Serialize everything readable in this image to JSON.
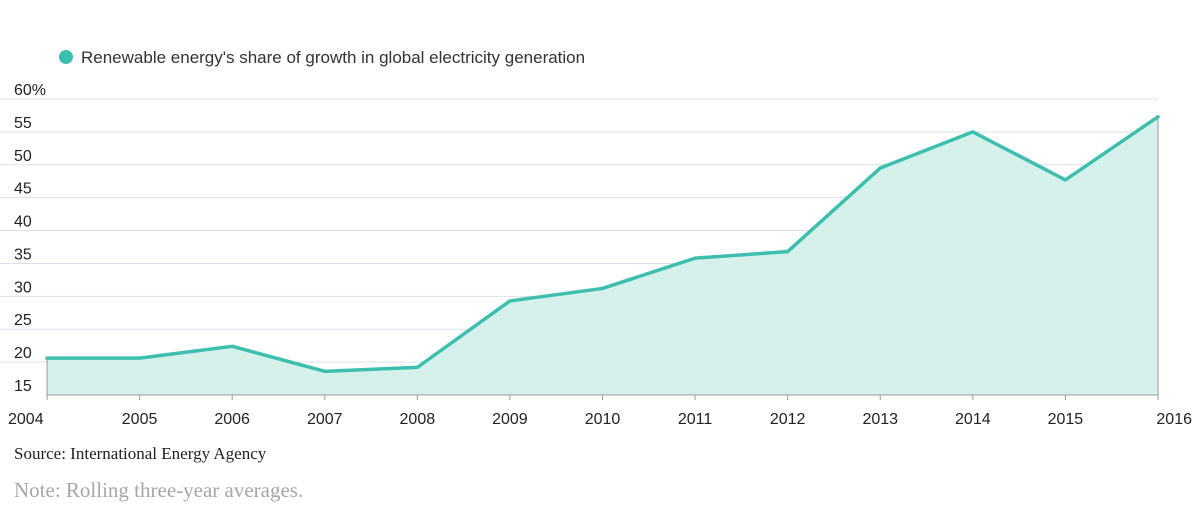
{
  "chart_data": {
    "type": "area",
    "legend": [
      "Renewable energy's share of growth in global electricity generation"
    ],
    "x": [
      "2004",
      "2005",
      "2006",
      "2007",
      "2008",
      "2009",
      "2010",
      "2011",
      "2012",
      "2013",
      "2014",
      "2015",
      "2016"
    ],
    "series": [
      {
        "name": "Renewable energy's share of growth in global electricity generation",
        "values": [
          20.6,
          20.6,
          22.4,
          18.6,
          19.2,
          29.3,
          31.2,
          35.8,
          36.8,
          49.5,
          55.0,
          47.7,
          57.3
        ]
      }
    ],
    "ylim": [
      15,
      60
    ],
    "yticks": [
      15,
      20,
      25,
      30,
      35,
      40,
      45,
      50,
      55,
      60
    ],
    "ytick_labels": [
      "15",
      "20",
      "25",
      "30",
      "35",
      "40",
      "45",
      "50",
      "55",
      "60%"
    ],
    "colors": {
      "line": "#3cbfae",
      "fill": "#d6f1ec",
      "grid": "#dde0e8",
      "axis": "#9a9a9a"
    },
    "grid": true,
    "legend_position": "top-left"
  },
  "source": "Source: International Energy Agency",
  "note": "Note: Rolling three-year averages."
}
